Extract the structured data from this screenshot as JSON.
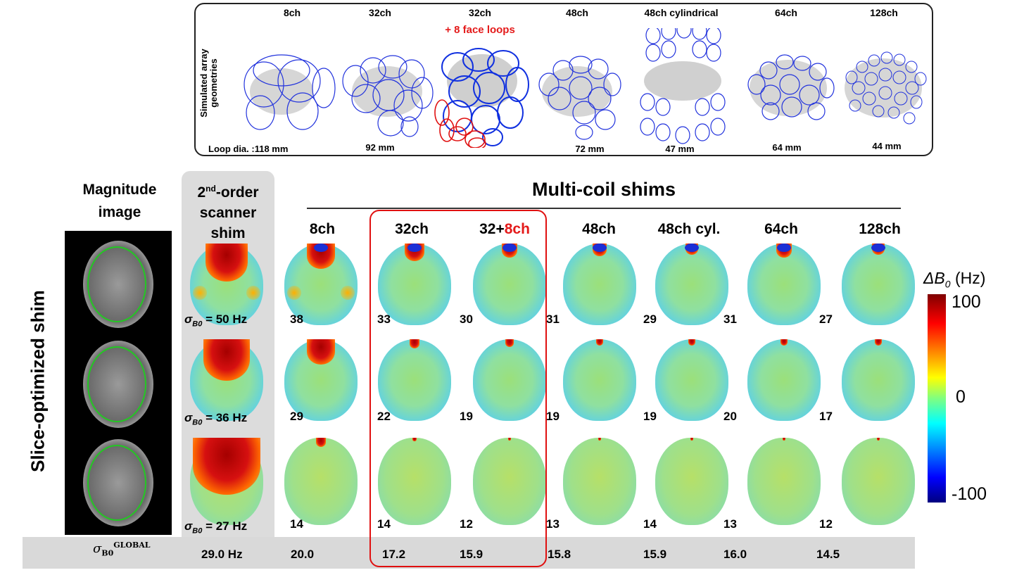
{
  "geometry_panel": {
    "side_label": "Simulated array geometries",
    "arrays": [
      {
        "name": "8ch",
        "extra": "",
        "loop": "Loop dia. :118 mm"
      },
      {
        "name": "32ch",
        "extra": "",
        "loop": "92 mm"
      },
      {
        "name": "32ch",
        "extra": "+ 8 face loops",
        "loop": ""
      },
      {
        "name": "48ch",
        "extra": "",
        "loop": "72 mm"
      },
      {
        "name": "48ch cylindrical",
        "extra": "",
        "loop": "47 mm"
      },
      {
        "name": "64ch",
        "extra": "",
        "loop": "64 mm"
      },
      {
        "name": "128ch",
        "extra": "",
        "loop": "44 mm"
      }
    ]
  },
  "left_labels": {
    "magnitude": "Magnitude image",
    "scanner_shim_sup": "nd",
    "scanner_shim_pre": "2",
    "scanner_shim_post": "-order scanner shim",
    "row_label": "Slice-optimized shim"
  },
  "multicoil_title": "Multi-coil shims",
  "columns": [
    "8ch",
    "32ch",
    "32+",
    "48ch",
    "48ch cyl.",
    "64ch",
    "128ch"
  ],
  "col_32plus_red": "8ch",
  "scanner_sigma": [
    "= 50 Hz",
    "= 36 Hz",
    "= 27 Hz"
  ],
  "sigma_symbol": "σ",
  "sigma_sub": "B0",
  "row_values": [
    [
      "38",
      "33",
      "30",
      "31",
      "29",
      "31",
      "27"
    ],
    [
      "29",
      "22",
      "19",
      "19",
      "19",
      "20",
      "17"
    ],
    [
      "14",
      "14",
      "12",
      "13",
      "14",
      "13",
      "12"
    ]
  ],
  "global": {
    "label_sigma": "σ",
    "label_sub": "B0",
    "label_sup": "GLOBAL",
    "scanner": "29.0 Hz",
    "values": [
      "20.0",
      "17.2",
      "15.9",
      "15.8",
      "15.9",
      "16.0",
      "14.5"
    ]
  },
  "colorbar": {
    "title_pre": "ΔB",
    "title_sub": "0",
    "title_unit": " (Hz)",
    "ticks": [
      "100",
      "0",
      "-100"
    ],
    "range": [
      -100,
      100
    ]
  }
}
